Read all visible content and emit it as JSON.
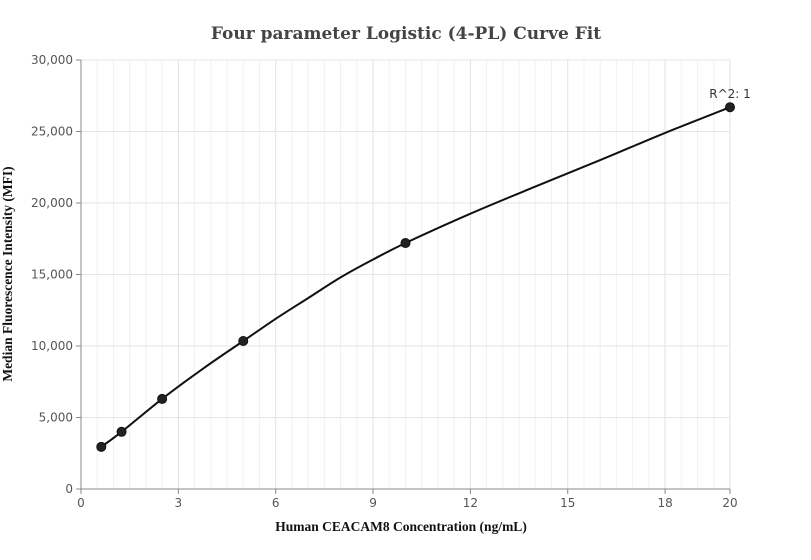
{
  "chart_data": {
    "type": "scatter",
    "title": "Four parameter Logistic (4-PL) Curve Fit",
    "xlabel": "Human CEACAM8 Concentration  (ng/mL)",
    "ylabel": "Median Fluorescence Intensity (MFI)",
    "xlim": [
      0,
      20
    ],
    "ylim": [
      0,
      30000
    ],
    "x_ticks": [
      0,
      3,
      6,
      9,
      12,
      15,
      18,
      20
    ],
    "x_tick_labels": [
      "0",
      "3",
      "6",
      "9",
      "12",
      "15",
      "18",
      "20"
    ],
    "y_ticks": [
      0,
      5000,
      10000,
      15000,
      20000,
      25000,
      30000
    ],
    "y_tick_labels": [
      "0",
      "5,000",
      "10,000",
      "15,000",
      "20,000",
      "25,000",
      "30,000"
    ],
    "grid": true,
    "points": {
      "x": [
        0.625,
        1.25,
        2.5,
        5,
        10,
        20
      ],
      "y": [
        2950,
        4000,
        6300,
        10350,
        17200,
        26700
      ]
    },
    "fit_curve": {
      "x": [
        0.625,
        1.25,
        2.5,
        3.75,
        5,
        6,
        7,
        8,
        9,
        10,
        12,
        14,
        16,
        18,
        20
      ],
      "y": [
        2950,
        4000,
        6300,
        8400,
        10350,
        11900,
        13350,
        14800,
        16050,
        17200,
        19250,
        21150,
        23000,
        24900,
        26700
      ]
    },
    "annotation": "R^2: 1",
    "colors": {
      "line": "#111111",
      "marker": "#222222",
      "grid": "#e6e6e6",
      "axis": "#888888"
    }
  }
}
